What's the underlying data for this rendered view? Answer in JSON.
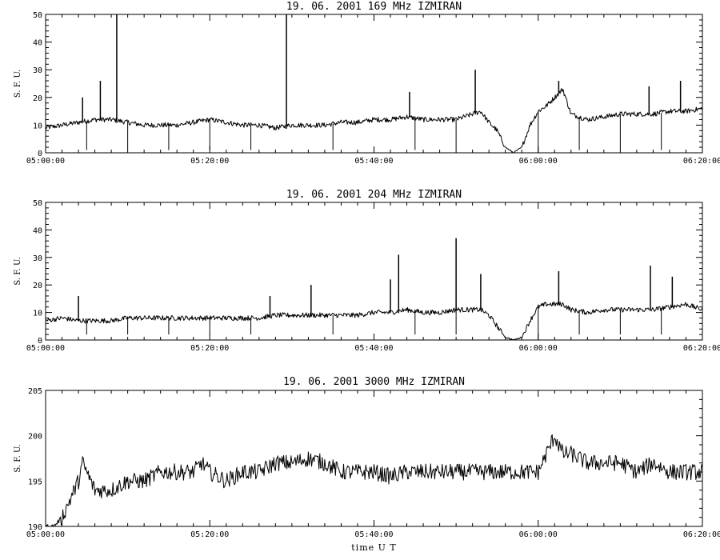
{
  "chart_data": [
    {
      "type": "line",
      "title": "19.  06.  2001    169 MHz    IZMIRAN",
      "ylabel": "S. F. U.",
      "xlabel": "",
      "xlim": [
        "05:00:00",
        "06:20:00"
      ],
      "ylim": [
        0,
        50
      ],
      "x_ticks": [
        "05:00:00",
        "05:20:00",
        "05:40:00",
        "06:00:00",
        "06:20:00"
      ],
      "y_ticks": [
        "0",
        "10",
        "20",
        "30",
        "40",
        "50"
      ],
      "grid": false,
      "color": "#000000",
      "series": [
        {
          "x": [
            "05:00:00",
            "05:02:00",
            "05:04:00",
            "05:06:00",
            "05:08:00",
            "05:10:00",
            "05:12:00",
            "05:14:00",
            "05:16:00",
            "05:18:00",
            "05:20:00",
            "05:22:00",
            "05:24:00",
            "05:26:00",
            "05:28:00",
            "05:30:00",
            "05:32:00",
            "05:34:00",
            "05:36:00",
            "05:38:00",
            "05:40:00",
            "05:42:00",
            "05:44:00",
            "05:46:00",
            "05:48:00",
            "05:50:00",
            "05:52:00",
            "05:53:00",
            "05:54:00",
            "05:55:00",
            "05:56:00",
            "05:57:00",
            "05:58:00",
            "05:59:00",
            "06:00:00",
            "06:01:00",
            "06:02:00",
            "06:03:00",
            "06:04:00",
            "06:06:00",
            "06:08:00",
            "06:10:00",
            "06:12:00",
            "06:14:00",
            "06:16:00",
            "06:18:00",
            "06:20:00"
          ],
          "values": [
            9,
            10,
            11,
            12,
            12,
            11,
            10,
            10,
            10,
            11,
            12,
            11,
            10,
            10,
            9,
            10,
            10,
            10,
            11,
            11,
            12,
            12,
            13,
            12,
            12,
            12,
            14,
            15,
            11,
            8,
            2,
            0,
            2,
            10,
            15,
            17,
            20,
            23,
            14,
            12,
            13,
            14,
            14,
            14,
            15,
            15,
            16
          ]
        }
      ],
      "spikes": [
        {
          "x": "05:04:30",
          "y": 20
        },
        {
          "x": "05:06:40",
          "y": 26
        },
        {
          "x": "05:08:40",
          "y": 50
        },
        {
          "x": "05:29:20",
          "y": 50
        },
        {
          "x": "05:44:20",
          "y": 22
        },
        {
          "x": "05:52:20",
          "y": 30
        },
        {
          "x": "06:02:30",
          "y": 26
        },
        {
          "x": "06:13:30",
          "y": 24
        },
        {
          "x": "06:17:20",
          "y": 26
        }
      ],
      "dips": [
        {
          "x": "05:05:00",
          "y": 1
        },
        {
          "x": "05:10:00",
          "y": 1
        },
        {
          "x": "05:15:00",
          "y": 1
        },
        {
          "x": "05:20:00",
          "y": 1
        },
        {
          "x": "05:25:00",
          "y": 1
        },
        {
          "x": "05:35:00",
          "y": 1
        },
        {
          "x": "05:45:00",
          "y": 1
        },
        {
          "x": "05:50:00",
          "y": 1
        },
        {
          "x": "06:00:00",
          "y": 0
        },
        {
          "x": "06:05:00",
          "y": 1
        },
        {
          "x": "06:10:00",
          "y": 1
        },
        {
          "x": "06:15:00",
          "y": 1
        }
      ]
    },
    {
      "type": "line",
      "title": "19.  06.  2001    204 MHz    IZMIRAN",
      "ylabel": "S. F. U.",
      "xlabel": "",
      "xlim": [
        "05:00:00",
        "06:20:00"
      ],
      "ylim": [
        0,
        50
      ],
      "x_ticks": [
        "05:00:00",
        "05:20:00",
        "05:40:00",
        "06:00:00",
        "06:20:00"
      ],
      "y_ticks": [
        "0",
        "10",
        "20",
        "30",
        "40",
        "50"
      ],
      "grid": false,
      "color": "#000000",
      "series": [
        {
          "x": [
            "05:00:00",
            "05:02:00",
            "05:04:00",
            "05:06:00",
            "05:08:00",
            "05:10:00",
            "05:12:00",
            "05:14:00",
            "05:16:00",
            "05:18:00",
            "05:20:00",
            "05:22:00",
            "05:24:00",
            "05:26:00",
            "05:28:00",
            "05:30:00",
            "05:32:00",
            "05:34:00",
            "05:36:00",
            "05:38:00",
            "05:40:00",
            "05:42:00",
            "05:44:00",
            "05:46:00",
            "05:48:00",
            "05:50:00",
            "05:52:00",
            "05:53:00",
            "05:54:00",
            "05:55:00",
            "05:56:00",
            "05:57:00",
            "05:58:00",
            "05:59:00",
            "06:00:00",
            "06:01:00",
            "06:02:00",
            "06:03:00",
            "06:04:00",
            "06:06:00",
            "06:08:00",
            "06:10:00",
            "06:12:00",
            "06:14:00",
            "06:16:00",
            "06:18:00",
            "06:20:00"
          ],
          "values": [
            7,
            8,
            7,
            7,
            7,
            8,
            8,
            8,
            8,
            8,
            8,
            8,
            8,
            8,
            9,
            9,
            9,
            9,
            9,
            9,
            10,
            10,
            11,
            10,
            10,
            11,
            11,
            11,
            9,
            5,
            1,
            0,
            1,
            7,
            12,
            13,
            13,
            13,
            11,
            10,
            11,
            11,
            11,
            11,
            12,
            13,
            11
          ]
        }
      ],
      "spikes": [
        {
          "x": "05:04:00",
          "y": 16
        },
        {
          "x": "05:27:20",
          "y": 16
        },
        {
          "x": "05:32:20",
          "y": 20
        },
        {
          "x": "05:42:00",
          "y": 22
        },
        {
          "x": "05:43:00",
          "y": 31
        },
        {
          "x": "05:50:00",
          "y": 37
        },
        {
          "x": "05:53:00",
          "y": 24
        },
        {
          "x": "06:02:30",
          "y": 25
        },
        {
          "x": "06:13:40",
          "y": 27
        },
        {
          "x": "06:16:20",
          "y": 23
        }
      ],
      "dips": [
        {
          "x": "05:05:00",
          "y": 2
        },
        {
          "x": "05:10:00",
          "y": 2
        },
        {
          "x": "05:15:00",
          "y": 2
        },
        {
          "x": "05:20:00",
          "y": 2
        },
        {
          "x": "05:25:00",
          "y": 2
        },
        {
          "x": "05:35:00",
          "y": 2
        },
        {
          "x": "05:45:00",
          "y": 2
        },
        {
          "x": "05:50:00",
          "y": 2
        },
        {
          "x": "06:00:00",
          "y": 0
        },
        {
          "x": "06:05:00",
          "y": 2
        },
        {
          "x": "06:10:00",
          "y": 2
        },
        {
          "x": "06:15:00",
          "y": 2
        }
      ]
    },
    {
      "type": "line",
      "title": "19.  06.  2001    3000 MHz    IZMIRAN",
      "ylabel": "S. F. U.",
      "xlabel": "time  U T",
      "xlim": [
        "05:00:00",
        "06:20:00"
      ],
      "ylim": [
        190,
        205
      ],
      "x_ticks": [
        "05:00:00",
        "05:20:00",
        "05:40:00",
        "06:00:00",
        "06:20:00"
      ],
      "y_ticks": [
        "190",
        "195",
        "200",
        "205"
      ],
      "grid": false,
      "color": "#000000",
      "series": [
        {
          "x": [
            "05:00:00",
            "05:01:00",
            "05:02:00",
            "05:03:00",
            "05:04:00",
            "05:04:30",
            "05:05:00",
            "05:06:00",
            "05:08:00",
            "05:10:00",
            "05:12:00",
            "05:14:00",
            "05:16:00",
            "05:18:00",
            "05:19:00",
            "05:20:00",
            "05:22:00",
            "05:24:00",
            "05:26:00",
            "05:28:00",
            "05:30:00",
            "05:32:00",
            "05:34:00",
            "05:36:00",
            "05:38:00",
            "05:40:00",
            "05:42:00",
            "05:44:00",
            "05:46:00",
            "05:48:00",
            "05:50:00",
            "05:52:00",
            "05:54:00",
            "05:56:00",
            "05:58:00",
            "06:00:00",
            "06:01:00",
            "06:02:00",
            "06:03:00",
            "06:04:00",
            "06:06:00",
            "06:08:00",
            "06:10:00",
            "06:12:00",
            "06:14:00",
            "06:16:00",
            "06:18:00",
            "06:20:00"
          ],
          "values": [
            190,
            190,
            191,
            193,
            195,
            197,
            196,
            194,
            194,
            195,
            195,
            196,
            196,
            196,
            197,
            196,
            195,
            196,
            196,
            197,
            197,
            197.5,
            197,
            196,
            196,
            196,
            195.5,
            196,
            196,
            196,
            196,
            196,
            196,
            196,
            196,
            196,
            198,
            200,
            198,
            198,
            197,
            197,
            197,
            196,
            197,
            196,
            196,
            196
          ]
        }
      ]
    }
  ]
}
